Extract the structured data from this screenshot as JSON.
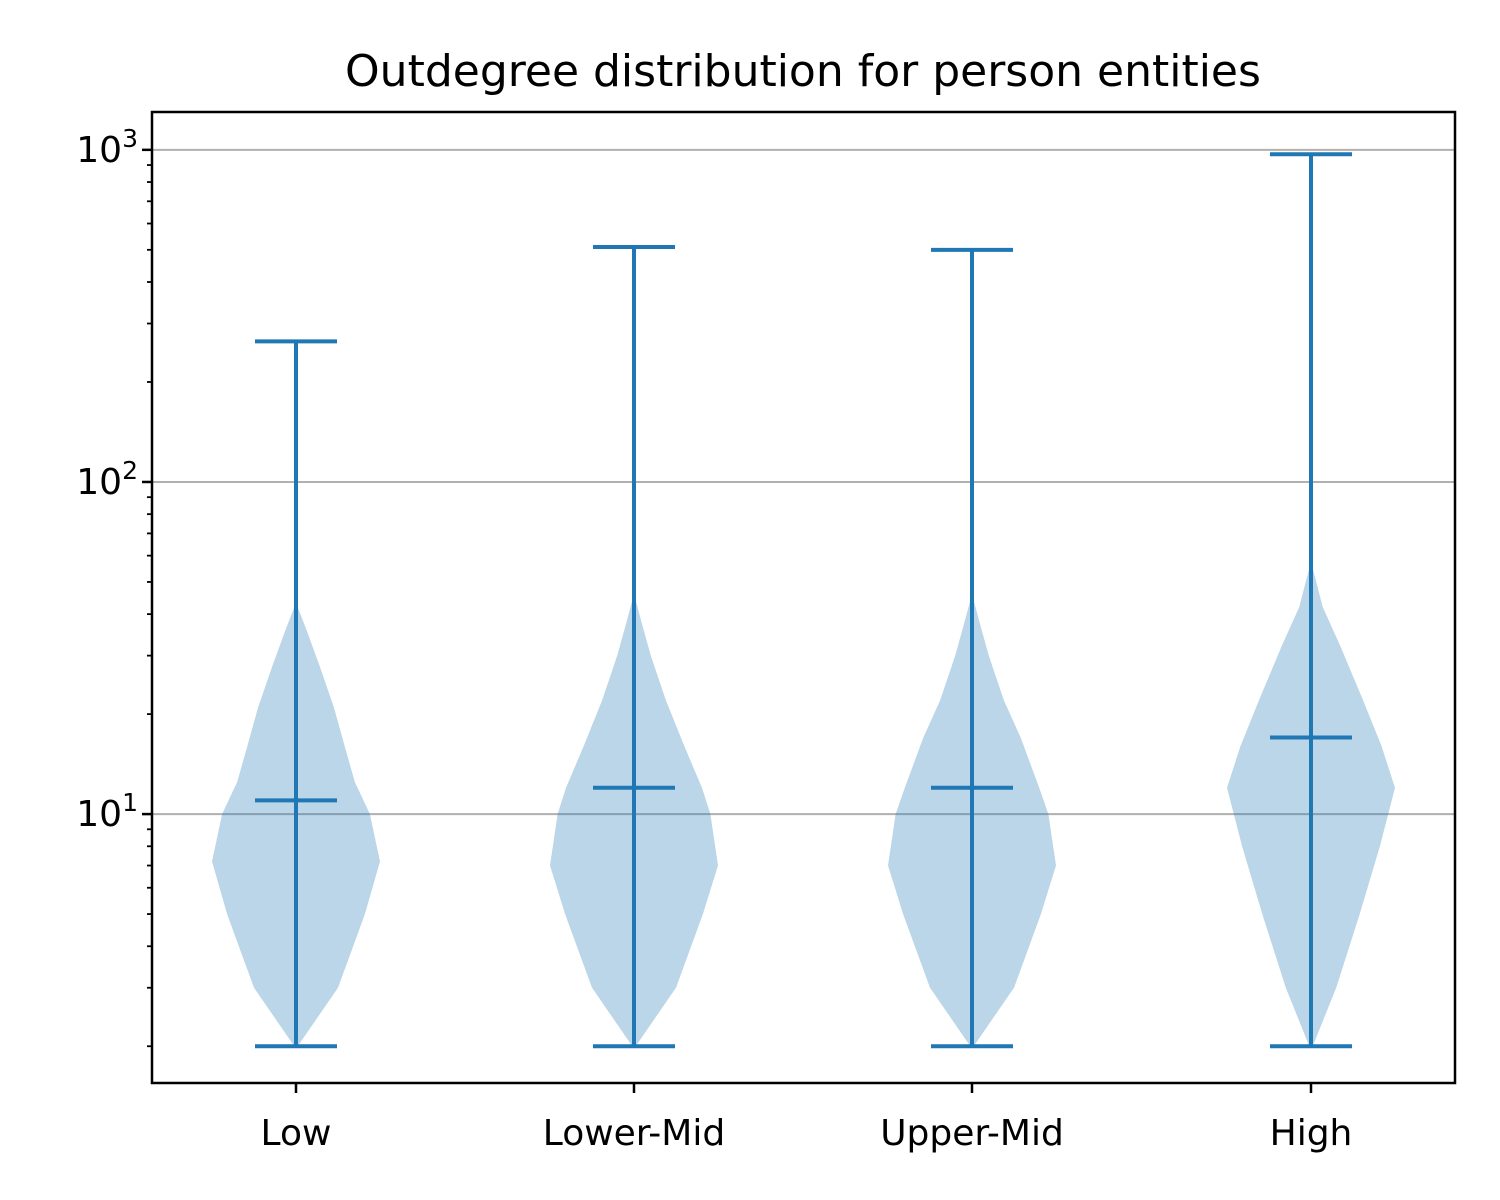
{
  "chart_data": {
    "type": "violin",
    "title": "Outdegree distribution for person entities",
    "xlabel": "",
    "ylabel": "",
    "yscale": "log",
    "ylim": [
      1.55,
      1300
    ],
    "yticks": [
      {
        "value": 10,
        "base": "10",
        "exp": "1"
      },
      {
        "value": 100,
        "base": "10",
        "exp": "2"
      },
      {
        "value": 1000,
        "base": "10",
        "exp": "3"
      }
    ],
    "grid": "y",
    "colors": {
      "body": "#1f77b4",
      "body_alpha": 0.3,
      "lines": "#1f77b4"
    },
    "categories": [
      "Low",
      "Lower-Mid",
      "Upper-Mid",
      "High"
    ],
    "series": [
      {
        "name": "Low",
        "min": 2,
        "median": 11,
        "max": 265,
        "density": [
          [
            2,
            0.02
          ],
          [
            3,
            0.5
          ],
          [
            5,
            0.82
          ],
          [
            7.2,
            1.0
          ],
          [
            10,
            0.88
          ],
          [
            12.5,
            0.7
          ],
          [
            16,
            0.58
          ],
          [
            21,
            0.45
          ],
          [
            28,
            0.28
          ],
          [
            35,
            0.14
          ],
          [
            42,
            0.02
          ]
        ]
      },
      {
        "name": "Lower-Mid",
        "min": 2,
        "median": 12,
        "max": 510,
        "density": [
          [
            2,
            0.02
          ],
          [
            3,
            0.5
          ],
          [
            5,
            0.82
          ],
          [
            7,
            1.0
          ],
          [
            10,
            0.91
          ],
          [
            12,
            0.81
          ],
          [
            16,
            0.6
          ],
          [
            22,
            0.38
          ],
          [
            30,
            0.2
          ],
          [
            37,
            0.1
          ],
          [
            44,
            0.02
          ]
        ]
      },
      {
        "name": "Upper-Mid",
        "min": 2,
        "median": 12,
        "max": 500,
        "density": [
          [
            2,
            0.02
          ],
          [
            3,
            0.5
          ],
          [
            5,
            0.82
          ],
          [
            7,
            1.0
          ],
          [
            10,
            0.91
          ],
          [
            12,
            0.8
          ],
          [
            17,
            0.58
          ],
          [
            22,
            0.38
          ],
          [
            30,
            0.2
          ],
          [
            37,
            0.1
          ],
          [
            44,
            0.02
          ]
        ]
      },
      {
        "name": "High",
        "min": 2,
        "median": 17,
        "max": 970,
        "density": [
          [
            2,
            0.02
          ],
          [
            3,
            0.3
          ],
          [
            5,
            0.58
          ],
          [
            8,
            0.82
          ],
          [
            12,
            1.0
          ],
          [
            16,
            0.84
          ],
          [
            22,
            0.62
          ],
          [
            32,
            0.35
          ],
          [
            42,
            0.14
          ],
          [
            55,
            0.02
          ]
        ]
      }
    ]
  }
}
